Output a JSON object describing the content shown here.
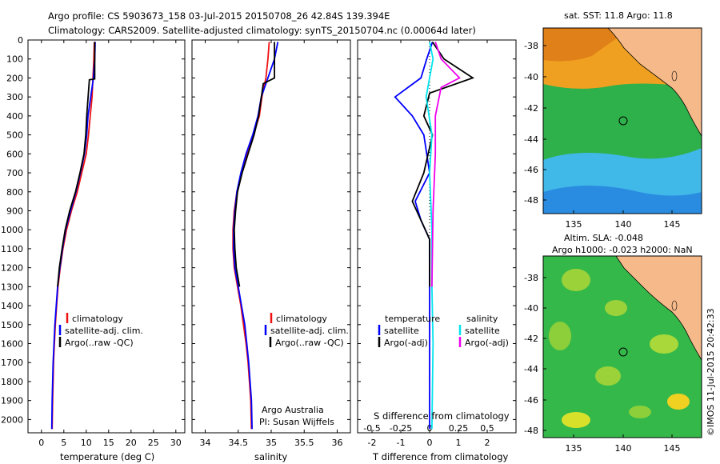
{
  "header": {
    "line1": "Argo profile: CS 5903673_158 03-Jul-2015 20150708_26 42.84S 139.394E",
    "line2": "Climatology: CARS2009. Satellite-adjusted climatology: synTS_20150704.nc (0.00064d later)"
  },
  "colors": {
    "climatology": "#ee1111",
    "satellite": "#0000ff",
    "argo": "#000000",
    "sat_salinity": "#00e5ee",
    "argo_salinity": "#ee00ee",
    "land": "#f5b98a"
  },
  "depth_axis": {
    "ylim": [
      0,
      2070
    ],
    "ticks": [
      0,
      100,
      200,
      300,
      400,
      500,
      600,
      700,
      800,
      900,
      1000,
      1100,
      1200,
      1300,
      1400,
      1500,
      1600,
      1700,
      1800,
      1900,
      2000
    ]
  },
  "legends": {
    "temperature_panel": [
      "climatology",
      "satellite-adj. clim.",
      "Argo(..raw -QC)"
    ],
    "salinity_panel": [
      "climatology",
      "satellite-adj. clim.",
      "Argo(..raw -QC)"
    ],
    "diff_temp_header": "temperature",
    "diff_sal_header": "salinity",
    "diff_temp_items": [
      "satellite",
      "Argo(-adj)"
    ],
    "diff_sal_items": [
      "satellite",
      "Argo(-adj)"
    ]
  },
  "annotations": {
    "argo_australia": "Argo Australia",
    "pi": "PI: Susan Wijffels",
    "timestamp": "©IMOS 11-Jul-2015 20:42:33"
  },
  "maps": {
    "sst_title": "sat. SST: 11.8 Argo: 11.8",
    "sla_title1": "Altim. SLA: -0.048",
    "sla_title2": "Argo h1000: -0.023 h2000: NaN",
    "lat_ticks": [
      "-38",
      "-40",
      "-42",
      "-44",
      "-46",
      "-48"
    ],
    "lon_ticks": [
      "135",
      "140",
      "145"
    ],
    "float_position": {
      "lat": -42.84,
      "lon": 139.394
    }
  },
  "chart_data": [
    {
      "type": "line",
      "xlabel": "temperature (deg C)",
      "ylabel": "",
      "xlim": [
        -3,
        32
      ],
      "xticks": [
        0,
        5,
        10,
        15,
        20,
        25,
        30
      ],
      "ylim": [
        0,
        2070
      ],
      "series": [
        {
          "name": "climatology",
          "x": [
            11.8,
            11.7,
            11.5,
            11.3,
            10.9,
            10.5,
            10.0,
            9.0,
            8.0,
            6.7,
            5.6,
            4.8,
            4.2,
            3.7,
            3.4,
            3.1,
            2.9,
            2.7,
            2.6,
            2.5,
            2.4
          ],
          "y": [
            10,
            100,
            200,
            300,
            400,
            500,
            600,
            700,
            800,
            900,
            1000,
            1100,
            1200,
            1300,
            1400,
            1500,
            1600,
            1700,
            1800,
            1900,
            2050
          ]
        },
        {
          "name": "satellite-adj. clim.",
          "x": [
            12.0,
            11.9,
            11.6,
            11.0,
            10.4,
            10.1,
            9.6,
            8.7,
            7.7,
            6.5,
            5.4,
            4.7,
            4.1,
            3.6,
            3.3,
            3.0,
            2.8,
            2.6,
            2.5,
            2.4,
            2.3
          ],
          "y": [
            10,
            100,
            200,
            300,
            400,
            500,
            600,
            700,
            800,
            900,
            1000,
            1100,
            1200,
            1300,
            1400,
            1500,
            1600,
            1700,
            1800,
            1900,
            2050
          ]
        },
        {
          "name": "Argo(..raw -QC)",
          "x": [
            11.9,
            11.9,
            11.9,
            10.7,
            10.1,
            9.9,
            9.5,
            8.6,
            7.6,
            6.3,
            5.3,
            4.6,
            4.0,
            3.6
          ],
          "y": [
            10,
            100,
            205,
            210,
            400,
            500,
            600,
            700,
            800,
            900,
            1000,
            1100,
            1200,
            1300
          ]
        }
      ]
    },
    {
      "type": "line",
      "xlabel": "salinity",
      "ylabel": "",
      "xlim": [
        33.8,
        36.2
      ],
      "xticks": [
        34,
        34.5,
        35,
        35.5,
        36
      ],
      "ylim": [
        0,
        2070
      ],
      "series": [
        {
          "name": "climatology",
          "x": [
            34.97,
            34.95,
            34.92,
            34.86,
            34.82,
            34.73,
            34.63,
            34.55,
            34.48,
            34.44,
            34.42,
            34.42,
            34.44,
            34.49,
            34.54,
            34.58,
            34.62,
            34.65,
            34.67,
            34.69,
            34.7
          ],
          "y": [
            10,
            100,
            200,
            300,
            400,
            500,
            600,
            700,
            800,
            900,
            1000,
            1100,
            1200,
            1300,
            1400,
            1500,
            1600,
            1700,
            1800,
            1900,
            2050
          ]
        },
        {
          "name": "satellite-adj. clim.",
          "x": [
            35.1,
            35.05,
            34.95,
            34.85,
            34.8,
            34.72,
            34.62,
            34.54,
            34.48,
            34.45,
            34.43,
            34.43,
            34.45,
            34.5,
            34.55,
            34.6,
            34.63,
            34.66,
            34.68,
            34.7,
            34.71
          ],
          "y": [
            10,
            100,
            200,
            300,
            400,
            500,
            600,
            700,
            800,
            900,
            1000,
            1100,
            1200,
            1300,
            1400,
            1500,
            1600,
            1700,
            1800,
            1900,
            2050
          ]
        },
        {
          "name": "Argo(..raw -QC)",
          "x": [
            35.05,
            35.05,
            35.05,
            34.88,
            34.81,
            34.74,
            34.65,
            34.56,
            34.49,
            34.46,
            34.44,
            34.45,
            34.47,
            34.52
          ],
          "y": [
            10,
            100,
            200,
            230,
            400,
            500,
            600,
            700,
            800,
            900,
            1000,
            1100,
            1200,
            1300
          ]
        }
      ]
    },
    {
      "type": "line",
      "xlabel": "T difference from climatology",
      "xlabel_top": "S difference from climatology",
      "ylabel": "",
      "xlim": [
        -2.5,
        3.0
      ],
      "xticks": [
        -2,
        -1,
        0,
        1,
        2
      ],
      "xticks_top": [
        "-0.5",
        "-0.25",
        "0",
        "0.25",
        "0.5"
      ],
      "ylim": [
        0,
        2070
      ],
      "series": [
        {
          "name": "T satellite",
          "x": [
            0.1,
            -0.1,
            -0.3,
            -1.2,
            -0.6,
            -0.2,
            0.0,
            -0.5,
            -0.3,
            0.0,
            0.0,
            0.0,
            0.0,
            0.0,
            0.0
          ],
          "y": [
            10,
            100,
            200,
            300,
            400,
            500,
            700,
            850,
            950,
            1050,
            1200,
            1400,
            1600,
            1800,
            2050
          ]
        },
        {
          "name": "T Argo(-adj)",
          "x": [
            0.1,
            0.5,
            1.5,
            0.0,
            -0.2,
            0.1,
            -0.2,
            -0.6,
            -0.3,
            0.0,
            0.0,
            0.0
          ],
          "y": [
            10,
            100,
            200,
            280,
            400,
            500,
            700,
            850,
            950,
            1050,
            1200,
            1300
          ]
        },
        {
          "name": "S satellite",
          "x": [
            0.0,
            0.03,
            0.0,
            -0.03,
            0.02,
            0.0,
            0.02,
            0.02,
            0.03,
            0.02
          ],
          "y": [
            10,
            100,
            200,
            300,
            500,
            700,
            1000,
            1300,
            1600,
            2050
          ]
        },
        {
          "name": "S Argo(-adj)",
          "x": [
            0.05,
            0.1,
            0.26,
            0.1,
            0.05,
            0.05,
            0.03,
            0.02
          ],
          "y": [
            10,
            100,
            200,
            250,
            400,
            600,
            900,
            1300
          ]
        }
      ]
    }
  ]
}
